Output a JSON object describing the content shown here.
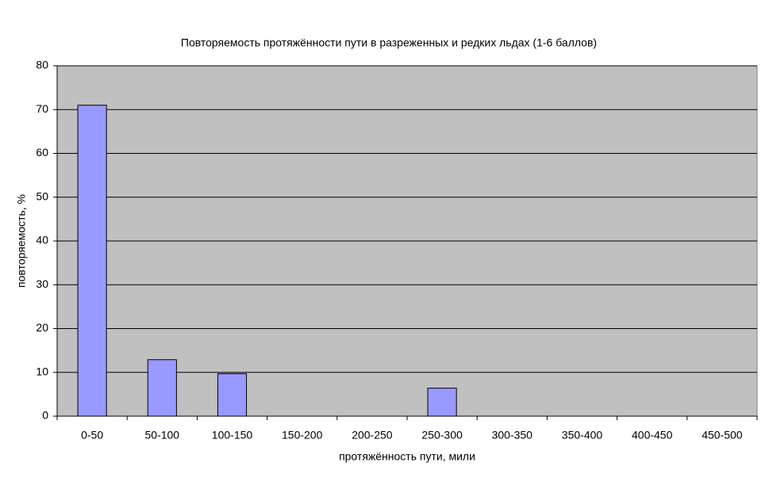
{
  "chart_data": {
    "type": "bar",
    "title": "Повторяемость протяжённости пути в разреженных и редких льдах (1-6 баллов)",
    "x_label": "протяжённость пути, мили",
    "y_label": "повторяемость, %",
    "categories": [
      "0-50",
      "50-100",
      "100-150",
      "150-200",
      "200-250",
      "250-300",
      "300-350",
      "350-400",
      "400-450",
      "450-500"
    ],
    "values": [
      71,
      12.9,
      9.7,
      0,
      0,
      6.4,
      0,
      0,
      0,
      0
    ],
    "color": "#9999ff",
    "ylim": [
      0,
      80
    ],
    "yticks": [
      0,
      10,
      20,
      30,
      40,
      50,
      60,
      70,
      80
    ],
    "grid": true
  }
}
